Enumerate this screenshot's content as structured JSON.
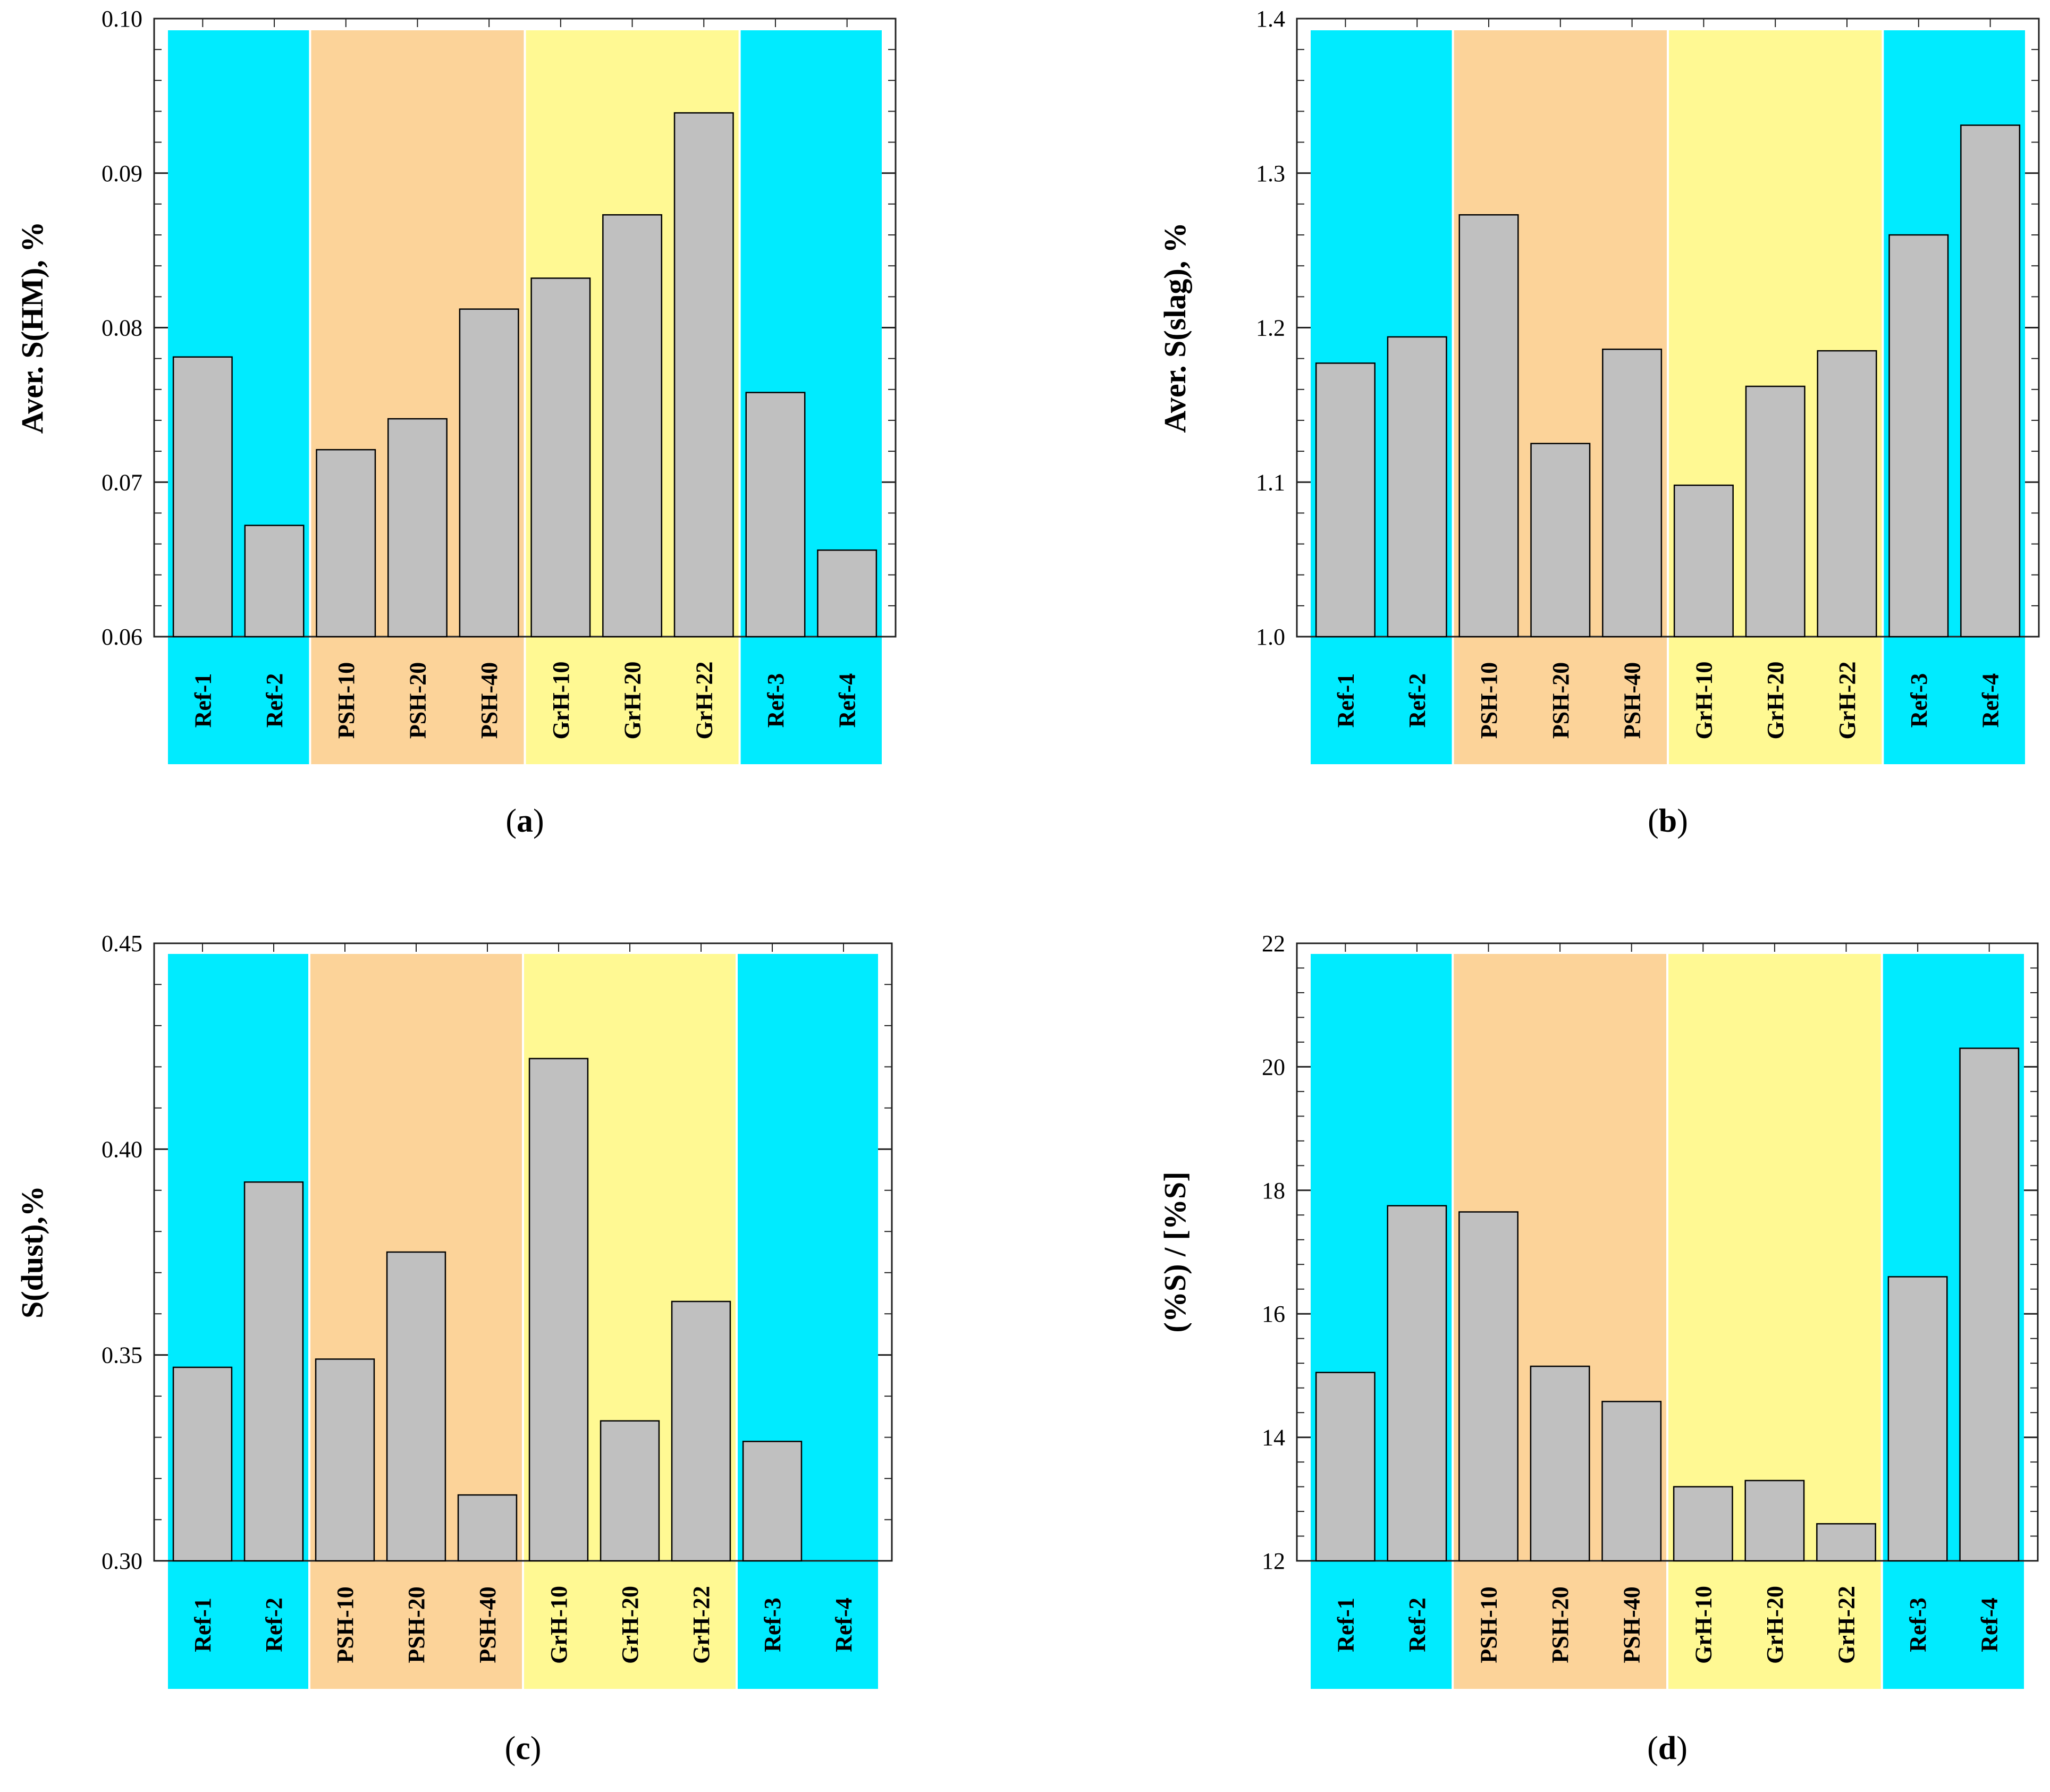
{
  "colors": {
    "ref": "#00ebff",
    "psh": "#fcd399",
    "grh": "#fff993",
    "bar": "#c0c0c0",
    "bar_stroke": "#000000",
    "axis": "#222222"
  },
  "chart_data": [
    {
      "id": "a",
      "type": "bar",
      "caption": {
        "open": "(",
        "letter": "a",
        "close": ")"
      },
      "ylabel": "Aver. S(HM), %",
      "xlabel": "",
      "ylim": [
        0.06,
        0.1
      ],
      "yticks": [
        "0.06",
        "0.07",
        "0.08",
        "0.09",
        "0.10"
      ],
      "categories": [
        "Ref-1",
        "Ref-2",
        "PSH-10",
        "PSH-20",
        "PSH-40",
        "GrH-10",
        "GrH-20",
        "GrH-22",
        "Ref-3",
        "Ref-4"
      ],
      "groups": [
        "ref",
        "ref",
        "psh",
        "psh",
        "psh",
        "grh",
        "grh",
        "grh",
        "ref",
        "ref"
      ],
      "values": [
        0.0781,
        0.0672,
        0.0721,
        0.0741,
        0.0812,
        0.0832,
        0.0873,
        0.0939,
        0.0758,
        0.0656
      ]
    },
    {
      "id": "b",
      "type": "bar",
      "caption": {
        "open": "(",
        "letter": "b",
        "close": ")"
      },
      "ylabel": "Aver. S(slag), %",
      "xlabel": "",
      "ylim": [
        1.0,
        1.4
      ],
      "yticks": [
        "1.0",
        "1.1",
        "1.2",
        "1.3",
        "1.4"
      ],
      "categories": [
        "Ref-1",
        "Ref-2",
        "PSH-10",
        "PSH-20",
        "PSH-40",
        "GrH-10",
        "GrH-20",
        "GrH-22",
        "Ref-3",
        "Ref-4"
      ],
      "groups": [
        "ref",
        "ref",
        "psh",
        "psh",
        "psh",
        "grh",
        "grh",
        "grh",
        "ref",
        "ref"
      ],
      "values": [
        1.177,
        1.194,
        1.273,
        1.125,
        1.186,
        1.098,
        1.162,
        1.185,
        1.26,
        1.331
      ]
    },
    {
      "id": "c",
      "type": "bar",
      "caption": {
        "open": "(",
        "letter": "c",
        "close": ")"
      },
      "ylabel": "S(dust),%",
      "xlabel": "",
      "ylim": [
        0.3,
        0.45
      ],
      "yticks": [
        "0.30",
        "0.35",
        "0.40",
        "0.45"
      ],
      "categories": [
        "Ref-1",
        "Ref-2",
        "PSH-10",
        "PSH-20",
        "PSH-40",
        "GrH-10",
        "GrH-20",
        "GrH-22",
        "Ref-3",
        "Ref-4"
      ],
      "groups": [
        "ref",
        "ref",
        "psh",
        "psh",
        "psh",
        "grh",
        "grh",
        "grh",
        "ref",
        "ref"
      ],
      "values": [
        0.347,
        0.392,
        0.349,
        0.375,
        0.316,
        0.422,
        0.334,
        0.363,
        0.329,
        null
      ]
    },
    {
      "id": "d",
      "type": "bar",
      "caption": {
        "open": "(",
        "letter": "d",
        "close": ")"
      },
      "ylabel": "(%S) / [%S]",
      "xlabel": "",
      "ylim": [
        12,
        22
      ],
      "yticks": [
        "12",
        "14",
        "16",
        "18",
        "20",
        "22"
      ],
      "categories": [
        "Ref-1",
        "Ref-2",
        "PSH-10",
        "PSH-20",
        "PSH-40",
        "GrH-10",
        "GrH-20",
        "GrH-22",
        "Ref-3",
        "Ref-4"
      ],
      "groups": [
        "ref",
        "ref",
        "psh",
        "psh",
        "psh",
        "grh",
        "grh",
        "grh",
        "ref",
        "ref"
      ],
      "values": [
        15.05,
        17.75,
        17.65,
        15.15,
        14.58,
        13.2,
        13.3,
        12.6,
        16.6,
        20.3
      ]
    }
  ]
}
